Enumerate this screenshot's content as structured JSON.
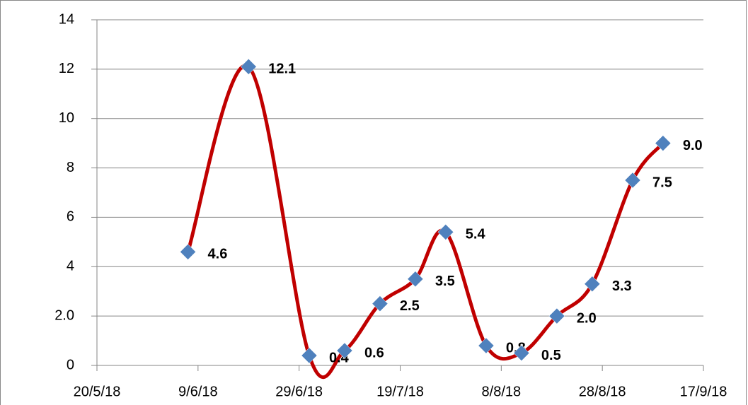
{
  "chart_data": {
    "type": "line",
    "x": [
      "2018-06-07",
      "2018-06-19",
      "2018-07-01",
      "2018-07-08",
      "2018-07-15",
      "2018-07-22",
      "2018-07-28",
      "2018-08-05",
      "2018-08-12",
      "2018-08-19",
      "2018-08-26",
      "2018-09-03",
      "2018-09-09"
    ],
    "series": [
      {
        "color": "#c00000",
        "marker_color": "#4f81bd",
        "values": [
          4.6,
          12.1,
          0.4,
          0.6,
          2.5,
          3.5,
          5.4,
          0.8,
          0.5,
          2.0,
          3.3,
          7.5,
          9.0
        ],
        "value_labels": [
          "4.6",
          "12.1",
          "0.4",
          "0.6",
          "2.5",
          "3.5",
          "5.4",
          "0.8",
          "0.5",
          "2.0",
          "3.3",
          "7.5",
          "9.0"
        ]
      }
    ],
    "xlim": [
      "2018-05-20",
      "2018-09-17"
    ],
    "xticks": [
      {
        "value": "2018-05-20",
        "label": "20/5/18"
      },
      {
        "value": "2018-06-09",
        "label": "9/6/18"
      },
      {
        "value": "2018-06-29",
        "label": "29/6/18"
      },
      {
        "value": "2018-07-19",
        "label": "19/7/18"
      },
      {
        "value": "2018-08-08",
        "label": "8/8/18"
      },
      {
        "value": "2018-08-28",
        "label": "28/8/18"
      },
      {
        "value": "2018-09-17",
        "label": "17/9/18"
      }
    ],
    "ylim": [
      0,
      14
    ],
    "yticks": [
      0,
      {
        "value": 2,
        "label": "2.0"
      },
      4,
      6,
      8,
      10,
      12,
      14
    ],
    "grid": true,
    "smooth": true
  }
}
